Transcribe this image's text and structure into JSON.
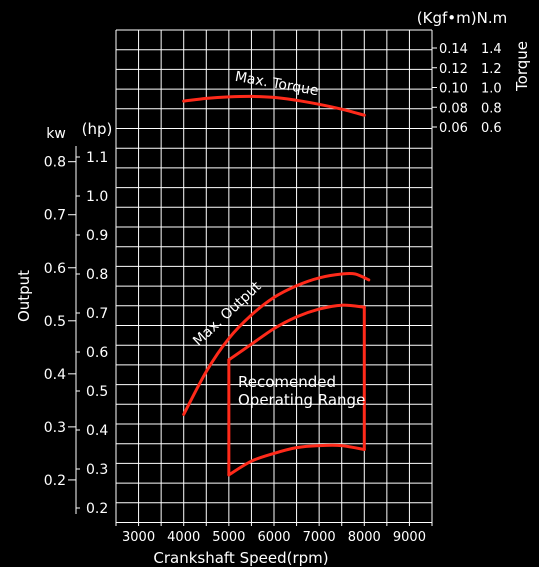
{
  "chart_data": {
    "type": "line",
    "colors": {
      "background": "#000000",
      "grid": "#ffffff",
      "curves": "#ff2a1a",
      "text": "#ffffff"
    },
    "x_axis": {
      "label": "Crankshaft Speed(rpm)",
      "range": [
        2500,
        9500
      ],
      "ticks": [
        3000,
        4000,
        5000,
        6000,
        7000,
        8000,
        9000
      ],
      "tick_labels": [
        "3000",
        "4000",
        "5000",
        "6000",
        "7000",
        "8000",
        "9000"
      ]
    },
    "output_axis": {
      "label": "Output",
      "kw_unit": "kw",
      "hp_unit": "(hp)",
      "kw_ticks": [
        0.2,
        0.3,
        0.4,
        0.5,
        0.6,
        0.7,
        0.8
      ],
      "kw_tick_labels": [
        "0.2",
        "0.3",
        "0.4",
        "0.5",
        "0.6",
        "0.7",
        "0.8"
      ],
      "hp_ticks": [
        0.2,
        0.3,
        0.4,
        0.5,
        0.6,
        0.7,
        0.8,
        0.9,
        1.0,
        1.1
      ],
      "hp_tick_labels": [
        "0.2",
        "0.3",
        "0.4",
        "0.5",
        "0.6",
        "0.7",
        "0.8",
        "0.9",
        "1.0",
        "1.1"
      ],
      "hp_range": [
        0.2,
        1.1
      ]
    },
    "torque_axis": {
      "label": "Torque",
      "unit_label": "(Kgf•m)N.m",
      "kgfm_ticks": [
        0.06,
        0.08,
        0.1,
        0.12,
        0.14
      ],
      "kgfm_tick_labels": [
        "0.06",
        "0.08",
        "0.10",
        "0.12",
        "0.14"
      ],
      "nm_tick_labels": [
        "0.6",
        "0.8",
        "1.0",
        "1.2",
        "1.4"
      ],
      "range_kgfm": [
        0.06,
        0.14
      ]
    },
    "grid": true,
    "series": [
      {
        "name": "Max. Torque",
        "axis": "torque_kgfm",
        "x": [
          4000,
          4500,
          5000,
          5500,
          6000,
          6500,
          7000,
          7500,
          8000
        ],
        "y": [
          0.0862,
          0.089,
          0.0905,
          0.091,
          0.09,
          0.087,
          0.083,
          0.078,
          0.072
        ]
      },
      {
        "name": "Max. Output",
        "axis": "output_hp",
        "x": [
          4000,
          4500,
          5000,
          5500,
          6000,
          6500,
          7000,
          7500,
          7800,
          8100
        ],
        "y": [
          0.44,
          0.55,
          0.635,
          0.695,
          0.74,
          0.77,
          0.79,
          0.8,
          0.8,
          0.785
        ]
      }
    ],
    "operating_range": {
      "label_line1": "Recomended",
      "label_line2": "Operating Range",
      "top": {
        "x": [
          5000,
          5500,
          6000,
          6500,
          7000,
          7500,
          8000
        ],
        "y": [
          0.58,
          0.62,
          0.66,
          0.69,
          0.71,
          0.72,
          0.715
        ]
      },
      "bottom": {
        "x": [
          5000,
          5500,
          6000,
          6500,
          7000,
          7500,
          8000
        ],
        "y": [
          0.285,
          0.32,
          0.34,
          0.355,
          0.36,
          0.36,
          0.35
        ]
      },
      "x_left": 5000,
      "x_right": 8000
    }
  }
}
